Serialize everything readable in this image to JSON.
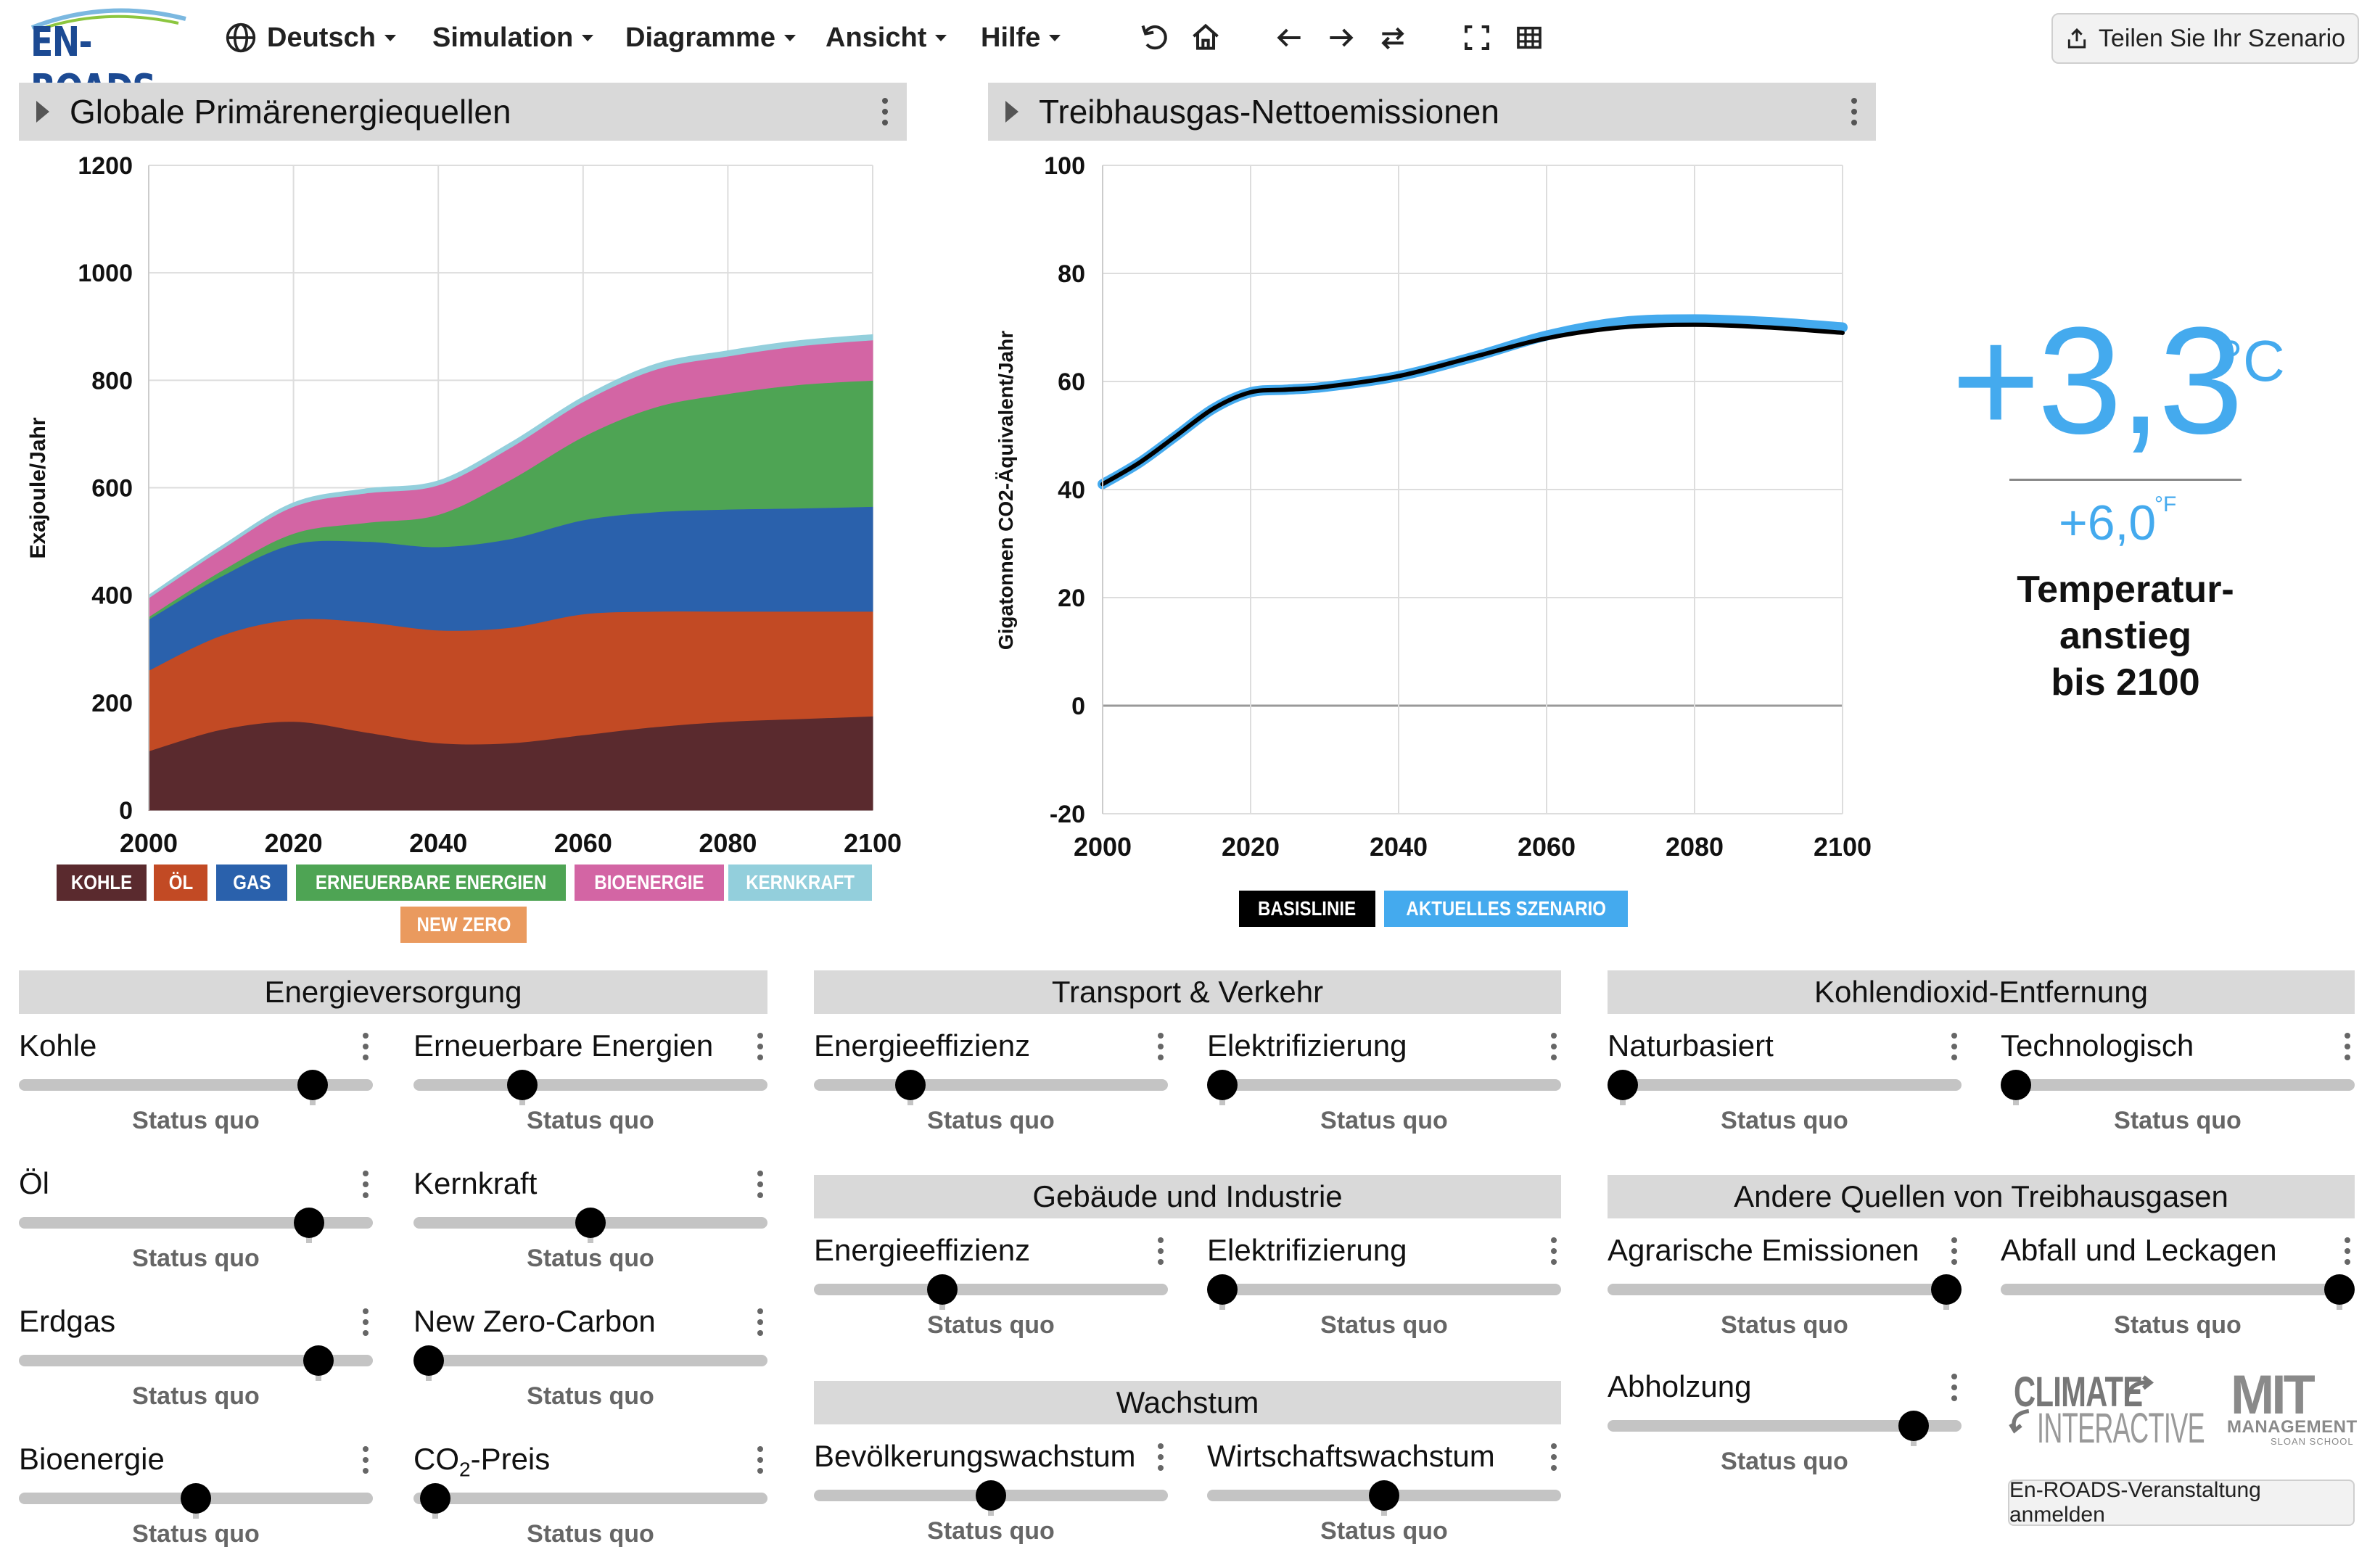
{
  "app": {
    "logo": "EN-ROADS"
  },
  "menu": {
    "language": "Deutsch",
    "simulation": "Simulation",
    "charts": "Diagramme",
    "view": "Ansicht",
    "help": "Hilfe"
  },
  "toolbar_icons": [
    "undo-icon",
    "home-icon",
    "back-icon",
    "forward-icon",
    "compare-icon",
    "fullscreen-icon",
    "table-icon"
  ],
  "share_label": "Teilen Sie Ihr Szenario",
  "graph_left": {
    "title": "Globale Primärenergiequellen",
    "ylabel": "Exajoule/Jahr",
    "legend": [
      {
        "label": "KOHLE",
        "color": "#5a2a2e"
      },
      {
        "label": "ÖL",
        "color": "#c24a24"
      },
      {
        "label": "GAS",
        "color": "#2a61ac"
      },
      {
        "label": "ERNEUERBARE ENERGIEN",
        "color": "#4ea454"
      },
      {
        "label": "BIOENERGIE",
        "color": "#d365a4"
      },
      {
        "label": "KERNKRAFT",
        "color": "#93cfdc"
      },
      {
        "label": "NEW ZERO",
        "color": "#ea9a5e"
      }
    ]
  },
  "graph_right": {
    "title": "Treibhausgas-Nettoemissionen",
    "ylabel": "Gigatonnen CO2-Äquivalent/Jahr",
    "legend": [
      {
        "label": "BASISLINIE",
        "color": "#000000"
      },
      {
        "label": "AKTUELLES SZENARIO",
        "color": "#44aaee"
      }
    ]
  },
  "chart_data": [
    {
      "type": "area",
      "title": "Globale Primärenergiequellen",
      "ylabel": "Exajoule/Jahr",
      "xlim": [
        2000,
        2100
      ],
      "ylim": [
        0,
        1200
      ],
      "xticks": [
        2000,
        2020,
        2040,
        2060,
        2080,
        2100
      ],
      "yticks": [
        0,
        200,
        400,
        600,
        800,
        1000,
        1200
      ],
      "x": [
        2000,
        2010,
        2020,
        2030,
        2040,
        2050,
        2060,
        2070,
        2080,
        2090,
        2100
      ],
      "series": [
        {
          "name": "KOHLE",
          "color": "#5a2a2e",
          "values": [
            110,
            150,
            165,
            145,
            125,
            125,
            140,
            155,
            165,
            170,
            175
          ]
        },
        {
          "name": "ÖL",
          "color": "#c24a24",
          "values": [
            150,
            175,
            190,
            205,
            210,
            215,
            225,
            215,
            205,
            200,
            195
          ]
        },
        {
          "name": "GAS",
          "color": "#2a61ac",
          "values": [
            95,
            110,
            140,
            150,
            155,
            165,
            175,
            185,
            190,
            192,
            195
          ]
        },
        {
          "name": "ERNEUERBARE ENERGIEN",
          "color": "#4ea454",
          "values": [
            5,
            10,
            20,
            35,
            60,
            110,
            155,
            195,
            215,
            230,
            235
          ]
        },
        {
          "name": "BIOENERGIE",
          "color": "#d365a4",
          "values": [
            35,
            40,
            50,
            55,
            55,
            60,
            65,
            70,
            70,
            72,
            75
          ]
        },
        {
          "name": "KERNKRAFT",
          "color": "#93cfdc",
          "values": [
            5,
            6,
            7,
            8,
            8,
            9,
            9,
            10,
            10,
            10,
            10
          ]
        },
        {
          "name": "NEW ZERO",
          "color": "#ea9a5e",
          "values": [
            0,
            0,
            0,
            0,
            0,
            0,
            0,
            0,
            0,
            0,
            0
          ]
        }
      ]
    },
    {
      "type": "line",
      "title": "Treibhausgas-Nettoemissionen",
      "ylabel": "Gigatonnen CO2-Äquivalent/Jahr",
      "xlim": [
        2000,
        2100
      ],
      "ylim": [
        -20,
        100
      ],
      "xticks": [
        2000,
        2020,
        2040,
        2060,
        2080,
        2100
      ],
      "yticks": [
        -20,
        0,
        20,
        40,
        60,
        80,
        100
      ],
      "x": [
        2000,
        2005,
        2010,
        2015,
        2020,
        2025,
        2030,
        2040,
        2050,
        2060,
        2070,
        2080,
        2090,
        2100
      ],
      "series": [
        {
          "name": "BASISLINIE",
          "color": "#000000",
          "values": [
            41,
            45,
            50,
            55,
            58,
            58.5,
            59,
            61,
            64.5,
            68,
            70,
            70.5,
            70,
            69
          ]
        },
        {
          "name": "AKTUELLES SZENARIO",
          "color": "#44aaee",
          "values": [
            41,
            45,
            50,
            55,
            58,
            58.5,
            59,
            61,
            64.5,
            68.5,
            71,
            71.5,
            71,
            70
          ]
        }
      ]
    }
  ],
  "temperature": {
    "celsius": "+3,3",
    "celsius_unit": "°C",
    "fahrenheit": "+6,0",
    "fahrenheit_unit": "°F",
    "label_line1": "Temperatur-",
    "label_line2": "anstieg",
    "label_line3": "bis 2100"
  },
  "sections": {
    "energy_supply": "Energieversorgung",
    "transport": "Transport & Verkehr",
    "buildings": "Gebäude und Industrie",
    "growth": "Wachstum",
    "carbon_removal": "Kohlendioxid-Entfernung",
    "other_ghg": "Andere Quellen von Treibhausgasen"
  },
  "sliders": {
    "coal": {
      "label": "Kohle",
      "status": "Status quo",
      "value": 0.86
    },
    "renewables": {
      "label": "Erneuerbare Energien",
      "status": "Status quo",
      "value": 0.29
    },
    "oil": {
      "label": "Öl",
      "status": "Status quo",
      "value": 0.85
    },
    "nuclear": {
      "label": "Kernkraft",
      "status": "Status quo",
      "value": 0.5
    },
    "gas": {
      "label": "Erdgas",
      "status": "Status quo",
      "value": 0.88
    },
    "new_zero": {
      "label": "New Zero-Carbon",
      "status": "Status quo",
      "value": 0.0
    },
    "bioenergy": {
      "label": "Bioenergie",
      "status": "Status quo",
      "value": 0.5
    },
    "co2_price": {
      "label_pre": "CO",
      "label_sub": "2",
      "label_post": "-Preis",
      "status": "Status quo",
      "value": 0.02
    },
    "transport_efficiency": {
      "label": "Energieeffizienz",
      "status": "Status quo",
      "value": 0.25
    },
    "transport_electrification": {
      "label": "Elektrifizierung",
      "status": "Status quo",
      "value": 0.0
    },
    "building_efficiency": {
      "label": "Energieeffizienz",
      "status": "Status quo",
      "value": 0.35
    },
    "building_electrification": {
      "label": "Elektrifizierung",
      "status": "Status quo",
      "value": 0.0
    },
    "population_growth": {
      "label": "Bevölkerungswachstum",
      "status": "Status quo",
      "value": 0.5
    },
    "economic_growth": {
      "label": "Wirtschaftswachstum",
      "status": "Status quo",
      "value": 0.5
    },
    "nature_based": {
      "label": "Naturbasiert",
      "status": "Status quo",
      "value": 0.0
    },
    "technological": {
      "label": "Technologisch",
      "status": "Status quo",
      "value": 0.0
    },
    "agriculture": {
      "label": "Agrarische Emissionen",
      "status": "Status quo",
      "value": 1.0
    },
    "waste_leakage": {
      "label": "Abfall und Leckagen",
      "status": "Status quo",
      "value": 1.0
    },
    "deforestation": {
      "label": "Abholzung",
      "status": "Status quo",
      "value": 0.9
    }
  },
  "footer": {
    "logo_climate_line1": "CLIMATE",
    "logo_climate_line2": "INTERACTIVE",
    "logo_mit": "MIT",
    "logo_mit_line2": "MANAGEMENT",
    "logo_mit_line3": "SLOAN SCHOOL",
    "register_label": "En-ROADS-Veranstaltung anmelden"
  }
}
